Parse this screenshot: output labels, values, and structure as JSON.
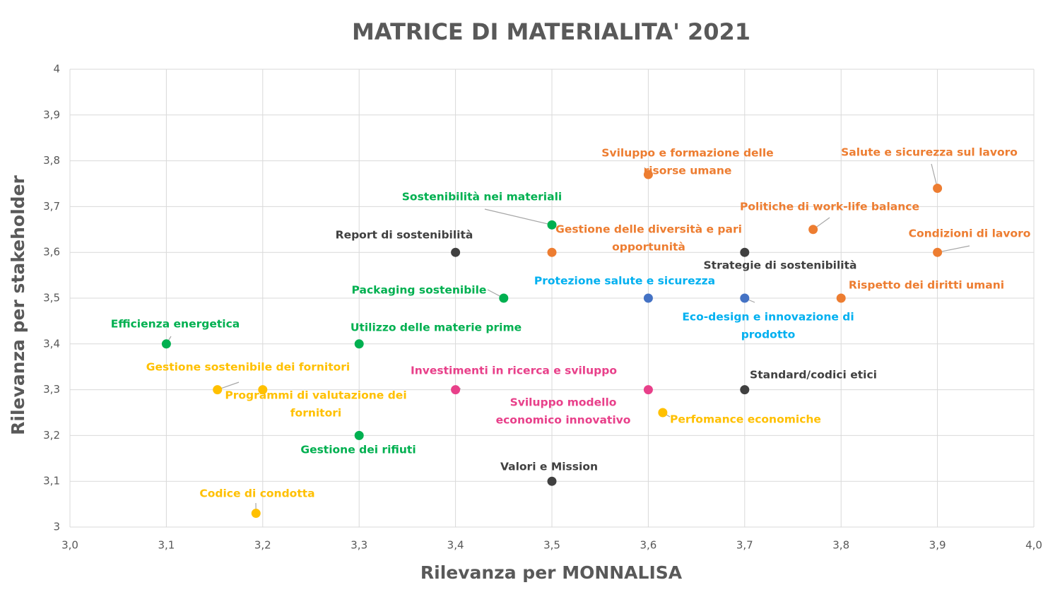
{
  "chart_data": {
    "type": "scatter",
    "title": "MATRICE DI MATERIALITA' 2021",
    "x_label": "Rilevanza per MONNALISA",
    "y_label": "Rilevanza per stakeholder",
    "xlim": [
      3.0,
      4.0
    ],
    "ylim": [
      3,
      4
    ],
    "xticks": [
      {
        "value": 3.0,
        "label": "3,0"
      },
      {
        "value": 3.1,
        "label": "3,1"
      },
      {
        "value": 3.2,
        "label": "3,2"
      },
      {
        "value": 3.3,
        "label": "3,3"
      },
      {
        "value": 3.4,
        "label": "3,4"
      },
      {
        "value": 3.5,
        "label": "3,5"
      },
      {
        "value": 3.6,
        "label": "3,6"
      },
      {
        "value": 3.7,
        "label": "3,7"
      },
      {
        "value": 3.8,
        "label": "3,8"
      },
      {
        "value": 3.9,
        "label": "3,9"
      },
      {
        "value": 4.0,
        "label": "4,0"
      }
    ],
    "yticks": [
      3,
      {
        "value": 3.1,
        "label": "3,1"
      },
      {
        "value": 3.2,
        "label": "3,2"
      },
      {
        "value": 3.3,
        "label": "3,3"
      },
      {
        "value": 3.4,
        "label": "3,4"
      },
      {
        "value": 3.5,
        "label": "3,5"
      },
      {
        "value": 3.6,
        "label": "3,6"
      },
      {
        "value": 3.7,
        "label": "3,7"
      },
      {
        "value": 3.8,
        "label": "3,8"
      },
      {
        "value": 3.9,
        "label": "3,9"
      },
      4
    ],
    "grid": true,
    "points": [
      {
        "label": "Efficienza energetica",
        "x": 3.1,
        "y": 3.4,
        "color": "#00b050"
      },
      {
        "label": "Gestione sostenibile dei fornitori",
        "x": 3.153,
        "y": 3.3,
        "color": "#ffc000"
      },
      {
        "label": [
          "Programmi di valutazione dei",
          "fornitori"
        ],
        "x": 3.2,
        "y": 3.3,
        "color": "#ffc000"
      },
      {
        "label": "Codice di condotta",
        "x": 3.193,
        "y": 3.03,
        "color": "#ffc000"
      },
      {
        "label": "Utilizzo delle materie prime",
        "x": 3.3,
        "y": 3.4,
        "color": "#00b050"
      },
      {
        "label": "Gestione dei rifiuti",
        "x": 3.3,
        "y": 3.2,
        "color": "#00b050"
      },
      {
        "label": "Report di sostenibilità",
        "x": 3.4,
        "y": 3.6,
        "color": "#404040"
      },
      {
        "label": "Packaging sostenibile",
        "x": 3.45,
        "y": 3.5,
        "color": "#00b050"
      },
      {
        "label": "Investimenti in ricerca e sviluppo",
        "x": 3.4,
        "y": 3.3,
        "color": "#e8408a"
      },
      {
        "label": "Sostenibilità nei materiali",
        "x": 3.5,
        "y": 3.66,
        "color": "#00b050"
      },
      {
        "label": [
          "Gestione delle diversità e pari",
          "opportunità"
        ],
        "x": 3.5,
        "y": 3.6,
        "color": "#ed7d31"
      },
      {
        "label": "Valori e Mission",
        "x": 3.5,
        "y": 3.1,
        "color": "#404040"
      },
      {
        "label": [
          "Sviluppo e formazione delle",
          "risorse umane"
        ],
        "x": 3.6,
        "y": 3.77,
        "color": "#ed7d31"
      },
      {
        "label": "Protezione salute e sicurezza",
        "x": 3.6,
        "y": 3.5,
        "color": "#4472c4",
        "label_color": "#00b0f0"
      },
      {
        "label": [
          "Sviluppo modello",
          "economico innovativo"
        ],
        "x": 3.6,
        "y": 3.3,
        "color": "#e8408a"
      },
      {
        "label": "Perfomance economiche",
        "x": 3.615,
        "y": 3.25,
        "color": "#ffc000"
      },
      {
        "label": "Strategie di sostenibilità",
        "x": 3.7,
        "y": 3.6,
        "color": "#404040"
      },
      {
        "label": [
          "Eco-design e innovazione di",
          "prodotto"
        ],
        "x": 3.7,
        "y": 3.5,
        "color": "#4472c4",
        "label_color": "#00b0f0"
      },
      {
        "label": "Standard/codici etici",
        "x": 3.7,
        "y": 3.3,
        "color": "#404040"
      },
      {
        "label": "Politiche di work-life balance",
        "x": 3.771,
        "y": 3.65,
        "color": "#ed7d31"
      },
      {
        "label": "Rispetto dei diritti umani",
        "x": 3.8,
        "y": 3.5,
        "color": "#ed7d31"
      },
      {
        "label": "Salute e sicurezza sul lavoro",
        "x": 3.9,
        "y": 3.74,
        "color": "#ed7d31"
      },
      {
        "label": "Condizioni di lavoro",
        "x": 3.9,
        "y": 3.6,
        "color": "#ed7d31"
      }
    ]
  }
}
